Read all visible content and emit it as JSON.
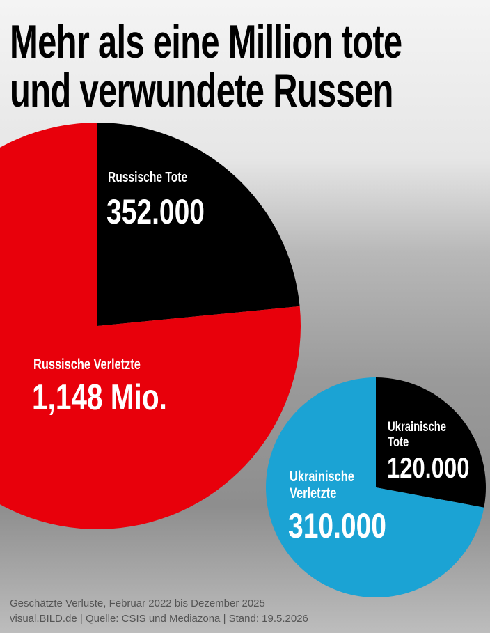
{
  "title": [
    "Mehr als eine Million tote",
    "und verwundete Russen"
  ],
  "chart_data": [
    {
      "type": "pie",
      "categories": [
        "Russische Tote",
        "Russische Verletzte"
      ],
      "values": [
        352000,
        1148000
      ],
      "value_labels": [
        "352.000",
        "1,148 Mio."
      ],
      "colors": [
        "#000000",
        "#e8000b"
      ]
    },
    {
      "type": "pie",
      "categories": [
        "Ukrainische Tote",
        "Ukrainische Verletzte"
      ],
      "values": [
        120000,
        310000
      ],
      "value_labels": [
        "120.000",
        "310.000"
      ],
      "colors": [
        "#000000",
        "#1ba3d4"
      ]
    }
  ],
  "footer": [
    "Geschätzte Verluste, Februar 2022 bis Dezember 2025",
    "visual.BILD.de | Quelle: CSIS und Mediazona | Stand: 19.5.2026"
  ]
}
